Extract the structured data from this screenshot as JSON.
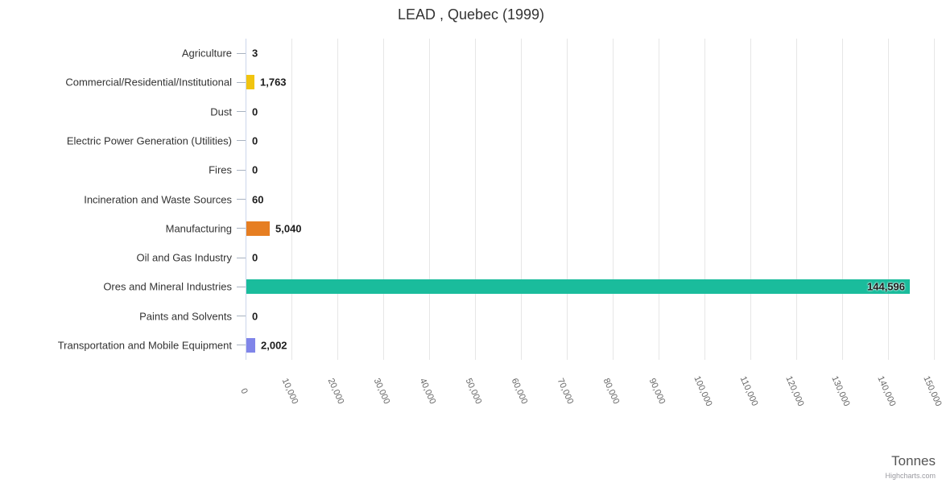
{
  "chart_data": {
    "type": "bar",
    "orientation": "horizontal",
    "title": "LEAD , Quebec (1999)",
    "xlabel": "Tonnes",
    "ylabel": "",
    "categories": [
      "Agriculture",
      "Commercial/Residential/Institutional",
      "Dust",
      "Electric Power Generation (Utilities)",
      "Fires",
      "Incineration and Waste Sources",
      "Manufacturing",
      "Oil and Gas Industry",
      "Ores and Mineral Industries",
      "Paints and Solvents",
      "Transportation and Mobile Equipment"
    ],
    "values": [
      3,
      1763,
      0,
      0,
      0,
      60,
      5040,
      0,
      144596,
      0,
      2002
    ],
    "value_labels": [
      "3",
      "1,763",
      "0",
      "0",
      "0",
      "60",
      "5,040",
      "0",
      "144,596",
      "0",
      "2,002"
    ],
    "bar_colors": [
      "#cccccc",
      "#f1c40f",
      "#cccccc",
      "#cccccc",
      "#cccccc",
      "#cccccc",
      "#e67e22",
      "#cccccc",
      "#1abc9c",
      "#cccccc",
      "#8085e9"
    ],
    "xlim": [
      0,
      150000
    ],
    "tick_interval": 10000,
    "tick_labels": [
      "0",
      "10,000",
      "20,000",
      "30,000",
      "40,000",
      "50,000",
      "60,000",
      "70,000",
      "80,000",
      "90,000",
      "100,000",
      "110,000",
      "120,000",
      "130,000",
      "140,000",
      "150,000"
    ],
    "grid": true,
    "legend": "none",
    "colors": {
      "grid": "#e6e6e6",
      "axis_line": "#ccd6eb",
      "category_tick": "#a8b2c0",
      "title_text": "#333333",
      "category_text": "#333333",
      "value_text": "#1c1c1c",
      "tick_text": "#666666",
      "axis_title_text": "#555555",
      "credits_text": "#9a9aa0",
      "background": "#ffffff"
    }
  },
  "credits": {
    "label": "Highcharts.com"
  }
}
